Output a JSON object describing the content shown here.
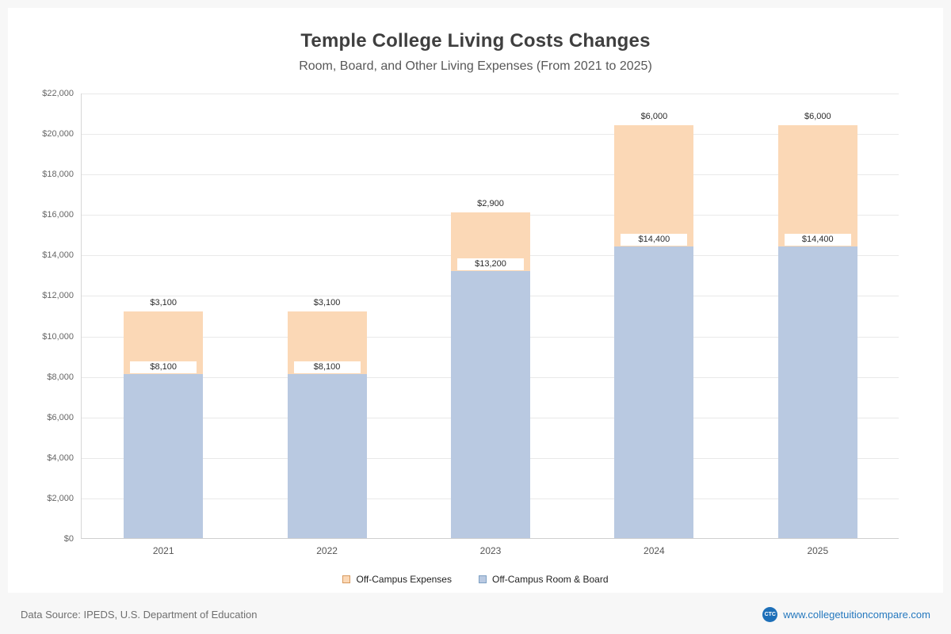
{
  "chart_data": {
    "type": "bar",
    "stacked": true,
    "title": "Temple College Living Costs Changes",
    "subtitle": "Room, Board, and Other Living Expenses (From 2021 to 2025)",
    "categories": [
      "2021",
      "2022",
      "2023",
      "2024",
      "2025"
    ],
    "series": [
      {
        "name": "Off-Campus Room & Board",
        "color": "#b9c9e1",
        "values": [
          8100,
          8100,
          13200,
          14400,
          14400
        ],
        "labels": [
          "$8,100",
          "$8,100",
          "$13,200",
          "$14,400",
          "$14,400"
        ]
      },
      {
        "name": "Off-Campus Expenses",
        "color": "#fbd8b6",
        "values": [
          3100,
          3100,
          2900,
          6000,
          6000
        ],
        "labels": [
          "$3,100",
          "$3,100",
          "$2,900",
          "$6,000",
          "$6,000"
        ]
      }
    ],
    "ylim": [
      0,
      22000
    ],
    "ytick_step": 2000,
    "ytick_labels": [
      "$0",
      "$2,000",
      "$4,000",
      "$6,000",
      "$8,000",
      "$10,000",
      "$12,000",
      "$14,000",
      "$16,000",
      "$18,000",
      "$20,000",
      "$22,000"
    ],
    "grid": "horizontal",
    "legend_position": "bottom"
  },
  "legend": {
    "items": [
      {
        "label": "Off-Campus Expenses",
        "fill": "#fbd8b6",
        "border": "#d89a5e"
      },
      {
        "label": "Off-Campus Room & Board",
        "fill": "#b9c9e1",
        "border": "#7da0c4"
      }
    ]
  },
  "footer": {
    "source": "Data Source: IPEDS, U.S. Department of Education",
    "logo": "CTC",
    "site": "www.collegetuitioncompare.com"
  }
}
